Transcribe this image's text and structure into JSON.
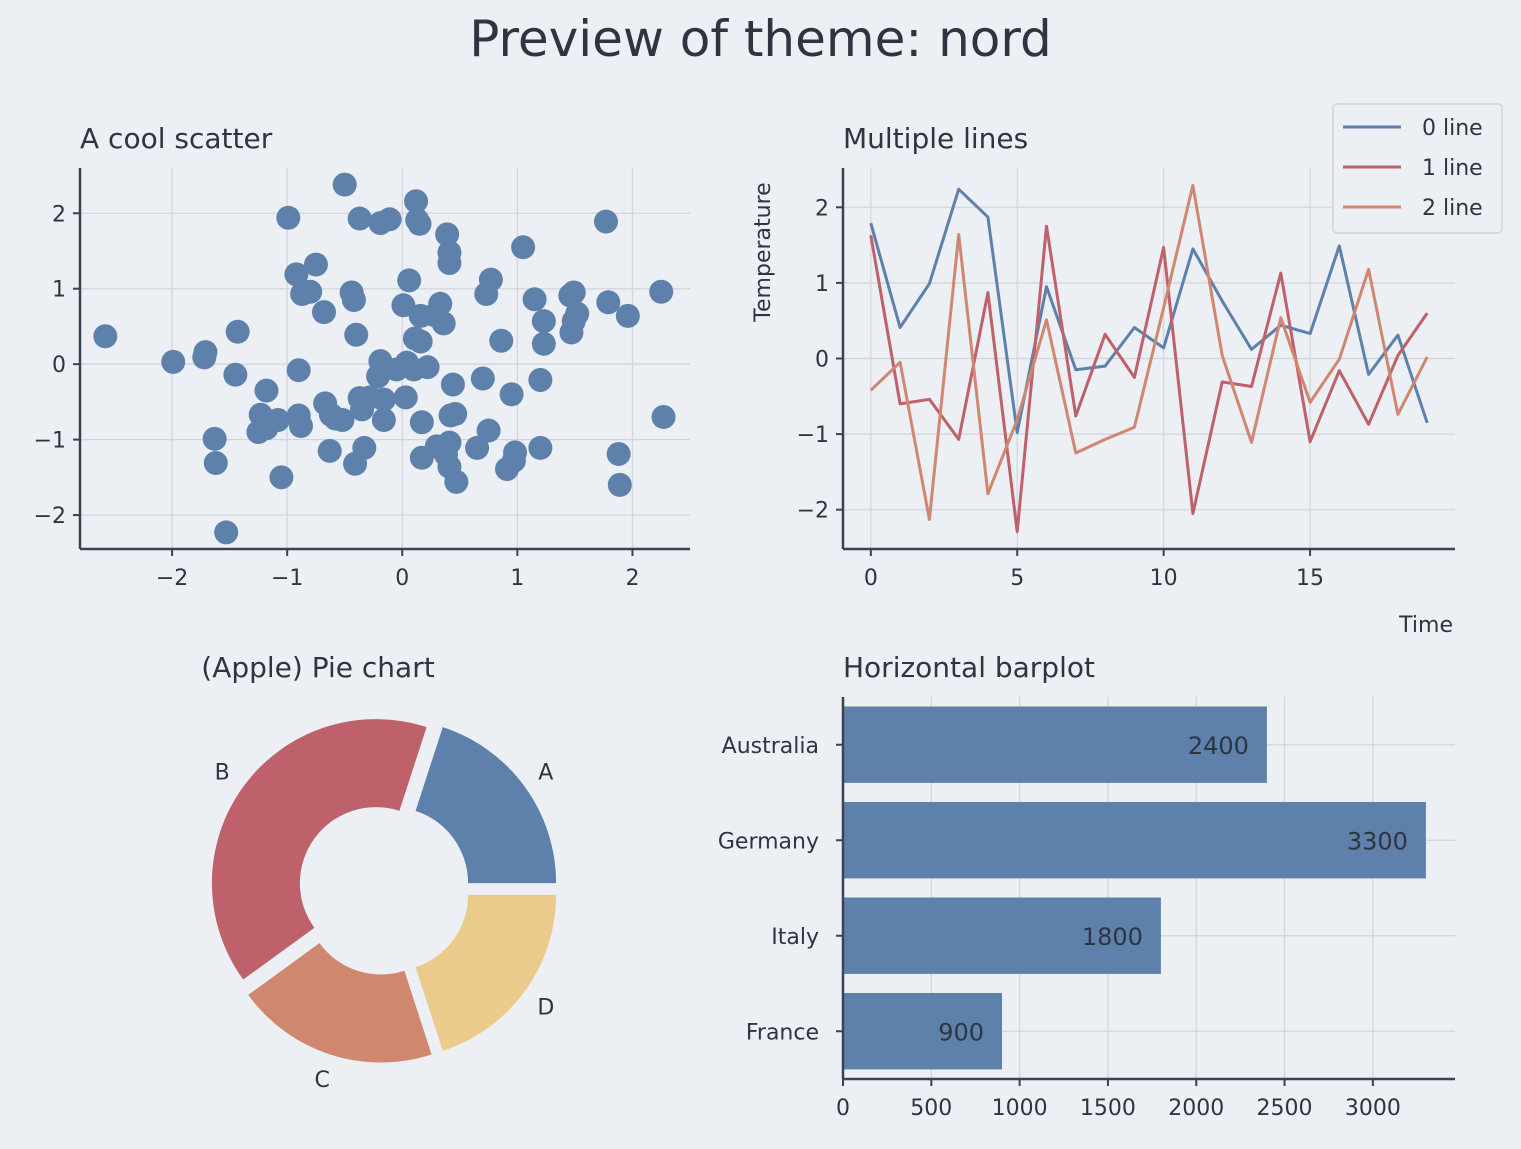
{
  "page": {
    "title": "Preview of theme: nord"
  },
  "chart_data": [
    {
      "type": "scatter",
      "title": "A cool scatter",
      "xlabel": "",
      "ylabel": "",
      "xlim": [
        -2.8,
        2.5
      ],
      "ylim": [
        -2.45,
        2.6
      ],
      "xticks": [
        -2,
        -1,
        0,
        1,
        2
      ],
      "yticks": [
        -2,
        -1,
        0,
        1,
        2
      ],
      "color": "#5e81ac",
      "grid": true,
      "points": [
        [
          -2.58,
          0.37
        ],
        [
          -1.99,
          0.03
        ],
        [
          -1.72,
          0.09
        ],
        [
          -1.71,
          0.16
        ],
        [
          -1.63,
          -0.99
        ],
        [
          -1.62,
          -1.31
        ],
        [
          -1.53,
          -2.23
        ],
        [
          -1.45,
          -0.14
        ],
        [
          -1.43,
          0.43
        ],
        [
          -1.18,
          -0.35
        ],
        [
          -1.23,
          -0.67
        ],
        [
          -1.25,
          -0.9
        ],
        [
          -1.18,
          -0.85
        ],
        [
          -1.08,
          -0.74
        ],
        [
          -1.05,
          -1.5
        ],
        [
          -0.99,
          1.94
        ],
        [
          -0.92,
          1.19
        ],
        [
          -0.9,
          -0.08
        ],
        [
          -0.9,
          -0.68
        ],
        [
          -0.88,
          -0.82
        ],
        [
          -0.87,
          0.93
        ],
        [
          -0.8,
          0.96
        ],
        [
          -0.75,
          1.32
        ],
        [
          -0.68,
          0.69
        ],
        [
          -0.67,
          -0.52
        ],
        [
          -0.62,
          -0.67
        ],
        [
          -0.63,
          -1.15
        ],
        [
          -0.58,
          -0.72
        ],
        [
          -0.52,
          -0.74
        ],
        [
          -0.5,
          2.38
        ],
        [
          -0.44,
          0.95
        ],
        [
          -0.42,
          0.85
        ],
        [
          -0.4,
          0.39
        ],
        [
          -0.41,
          -1.32
        ],
        [
          -0.37,
          1.93
        ],
        [
          -0.37,
          -0.45
        ],
        [
          -0.35,
          -0.6
        ],
        [
          -0.33,
          -1.11
        ],
        [
          -0.28,
          -0.44
        ],
        [
          -0.19,
          0.04
        ],
        [
          -0.21,
          -0.16
        ],
        [
          -0.19,
          1.87
        ],
        [
          -0.16,
          -0.47
        ],
        [
          -0.16,
          -0.74
        ],
        [
          -0.11,
          1.92
        ],
        [
          -0.05,
          -0.07
        ],
        [
          0.01,
          0.78
        ],
        [
          0.03,
          -0.44
        ],
        [
          0.04,
          0.02
        ],
        [
          0.06,
          1.11
        ],
        [
          0.1,
          -0.07
        ],
        [
          0.11,
          0.34
        ],
        [
          0.12,
          2.16
        ],
        [
          0.13,
          1.91
        ],
        [
          0.15,
          1.86
        ],
        [
          0.16,
          0.64
        ],
        [
          0.16,
          0.3
        ],
        [
          0.17,
          -0.77
        ],
        [
          0.17,
          -1.24
        ],
        [
          0.22,
          -0.04
        ],
        [
          0.28,
          0.65
        ],
        [
          0.3,
          -1.09
        ],
        [
          0.33,
          0.8
        ],
        [
          0.36,
          0.54
        ],
        [
          0.38,
          -1.2
        ],
        [
          0.39,
          1.72
        ],
        [
          0.41,
          1.48
        ],
        [
          0.41,
          1.34
        ],
        [
          0.41,
          -1.36
        ],
        [
          0.41,
          -1.04
        ],
        [
          0.42,
          -0.68
        ],
        [
          0.44,
          -0.27
        ],
        [
          0.46,
          -0.66
        ],
        [
          0.47,
          -1.56
        ],
        [
          0.65,
          -1.11
        ],
        [
          0.7,
          -0.19
        ],
        [
          0.73,
          0.93
        ],
        [
          0.77,
          1.12
        ],
        [
          0.75,
          -0.88
        ],
        [
          0.86,
          0.31
        ],
        [
          0.91,
          -1.39
        ],
        [
          0.95,
          -0.4
        ],
        [
          0.97,
          -1.28
        ],
        [
          0.98,
          -1.17
        ],
        [
          1.05,
          1.55
        ],
        [
          1.15,
          0.86
        ],
        [
          1.2,
          -0.21
        ],
        [
          1.2,
          -1.11
        ],
        [
          1.23,
          0.57
        ],
        [
          1.23,
          0.27
        ],
        [
          1.46,
          0.91
        ],
        [
          1.49,
          0.95
        ],
        [
          1.47,
          0.42
        ],
        [
          1.49,
          0.57
        ],
        [
          1.52,
          0.67
        ],
        [
          1.77,
          1.89
        ],
        [
          1.79,
          0.82
        ],
        [
          1.88,
          -1.19
        ],
        [
          1.89,
          -1.6
        ],
        [
          1.96,
          0.64
        ],
        [
          2.25,
          0.96
        ],
        [
          2.27,
          -0.7
        ]
      ]
    },
    {
      "type": "line",
      "title": "Multiple lines",
      "xlabel": "Time",
      "ylabel": "Temperature",
      "xlim": [
        -0.95,
        19.95
      ],
      "ylim": [
        -2.52,
        2.52
      ],
      "xticks": [
        0,
        5,
        10,
        15
      ],
      "yticks": [
        -2,
        -1,
        0,
        1,
        2
      ],
      "grid": true,
      "legend": "top-right",
      "x": [
        0,
        1,
        2,
        3,
        4,
        5,
        6,
        7,
        8,
        9,
        10,
        11,
        12,
        13,
        14,
        15,
        16,
        17,
        18,
        19
      ],
      "series": [
        {
          "name": "0 line",
          "color": "#5e81ac",
          "values": [
            1.79,
            0.41,
            0.99,
            2.24,
            1.87,
            -0.98,
            0.95,
            -0.15,
            -0.1,
            0.41,
            0.14,
            1.45,
            0.76,
            0.12,
            0.44,
            0.33,
            1.49,
            -0.21,
            0.31,
            -0.85
          ]
        },
        {
          "name": "1 line",
          "color": "#bf616a",
          "values": [
            1.63,
            -0.6,
            -0.54,
            -1.07,
            0.87,
            -2.29,
            1.75,
            -0.76,
            0.32,
            -0.25,
            1.47,
            -2.05,
            -0.31,
            -0.37,
            1.13,
            -1.1,
            -0.16,
            -0.87,
            0.04,
            0.6
          ]
        },
        {
          "name": "2 line",
          "color": "#d08770",
          "values": [
            -0.42,
            -0.05,
            -2.13,
            1.64,
            -1.79,
            -0.81,
            0.51,
            -1.25,
            -1.07,
            -0.91,
            0.67,
            2.29,
            0.04,
            -1.11,
            0.54,
            -0.58,
            -0.01,
            1.18,
            -0.74,
            0.02
          ]
        }
      ]
    },
    {
      "type": "pie",
      "title": "(Apple) Pie chart",
      "donut": true,
      "labels": [
        "A",
        "B",
        "C",
        "D"
      ],
      "values": [
        20,
        40,
        20,
        20
      ],
      "colors": [
        "#5e81ac",
        "#bf616a",
        "#d08770",
        "#ebcb8b"
      ]
    },
    {
      "type": "bar",
      "orientation": "horizontal",
      "title": "Horizontal barplot",
      "xlabel": "",
      "ylabel": "",
      "categories": [
        "France",
        "Italy",
        "Germany",
        "Australia"
      ],
      "values": [
        900,
        1800,
        3300,
        2400
      ],
      "data_labels": [
        "900",
        "1800",
        "3300",
        "2400"
      ],
      "xlim": [
        0,
        3465
      ],
      "xticks": [
        0,
        500,
        1000,
        1500,
        2000,
        2500,
        3000
      ],
      "color": "#5e81ac",
      "grid": true
    }
  ]
}
